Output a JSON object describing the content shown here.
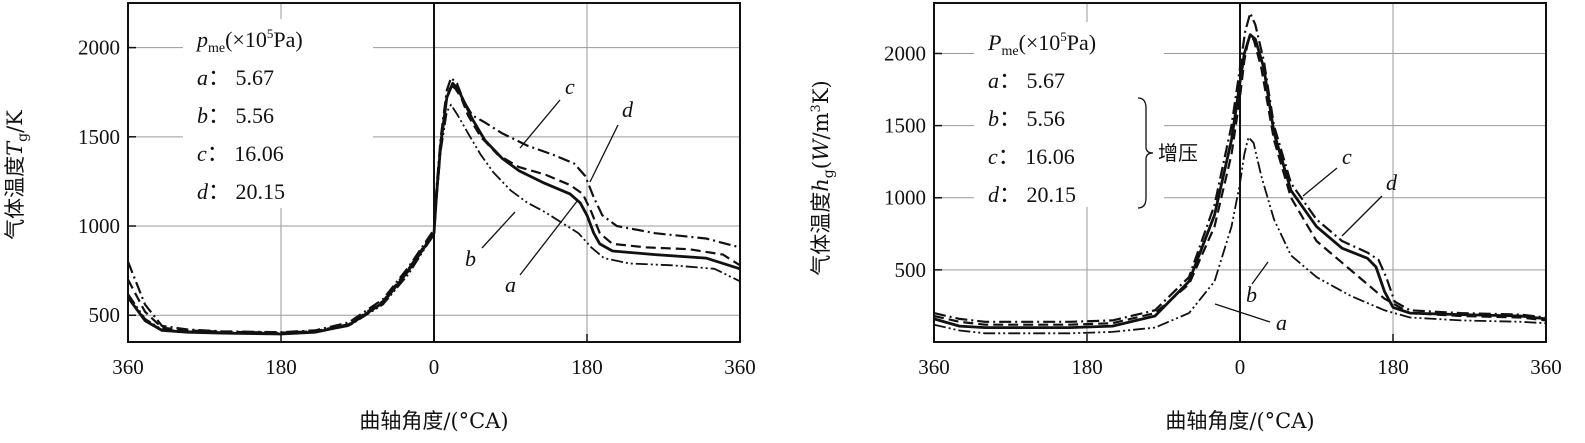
{
  "chart_data": [
    {
      "type": "line",
      "xlabel": "曲轴角度/(°CA)",
      "ylabel": "气体温度T_g/K",
      "x_tick_labels": [
        "360",
        "180",
        "0",
        "180",
        "360"
      ],
      "x_tick_values": [
        -360,
        -180,
        0,
        180,
        360
      ],
      "y_ticks": [
        500,
        1000,
        1500,
        2000
      ],
      "xlim": [
        -360,
        360
      ],
      "ylim": [
        350,
        2250
      ],
      "grid": true,
      "legend": {
        "title": "p_me(×10^5Pa)",
        "entries": [
          {
            "key": "a",
            "value": "5.67"
          },
          {
            "key": "b",
            "value": "5.56"
          },
          {
            "key": "c",
            "value": "16.06"
          },
          {
            "key": "d",
            "value": "20.15"
          }
        ]
      },
      "series": [
        {
          "name": "a",
          "style": "dashed",
          "points": [
            [
              -360,
              700
            ],
            [
              -340,
              520
            ],
            [
              -320,
              430
            ],
            [
              -290,
              415
            ],
            [
              -250,
              408
            ],
            [
              -180,
              402
            ],
            [
              -140,
              410
            ],
            [
              -100,
              450
            ],
            [
              -60,
              580
            ],
            [
              -30,
              760
            ],
            [
              -10,
              900
            ],
            [
              0,
              970
            ],
            [
              3,
              1200
            ],
            [
              8,
              1480
            ],
            [
              15,
              1720
            ],
            [
              20,
              1790
            ],
            [
              25,
              1770
            ],
            [
              32,
              1720
            ],
            [
              40,
              1620
            ],
            [
              55,
              1500
            ],
            [
              75,
              1400
            ],
            [
              100,
              1330
            ],
            [
              130,
              1290
            ],
            [
              160,
              1230
            ],
            [
              175,
              1180
            ],
            [
              185,
              1080
            ],
            [
              195,
              960
            ],
            [
              210,
              900
            ],
            [
              250,
              880
            ],
            [
              300,
              870
            ],
            [
              340,
              840
            ],
            [
              360,
              780
            ]
          ]
        },
        {
          "name": "b",
          "style": "dash-dot-dot",
          "points": [
            [
              -360,
              620
            ],
            [
              -340,
              480
            ],
            [
              -320,
              420
            ],
            [
              -290,
              410
            ],
            [
              -250,
              405
            ],
            [
              -180,
              400
            ],
            [
              -140,
              405
            ],
            [
              -100,
              440
            ],
            [
              -60,
              560
            ],
            [
              -30,
              730
            ],
            [
              -10,
              880
            ],
            [
              0,
              950
            ],
            [
              3,
              1150
            ],
            [
              8,
              1420
            ],
            [
              15,
              1640
            ],
            [
              20,
              1680
            ],
            [
              28,
              1620
            ],
            [
              40,
              1520
            ],
            [
              55,
              1400
            ],
            [
              70,
              1300
            ],
            [
              90,
              1200
            ],
            [
              110,
              1130
            ],
            [
              130,
              1080
            ],
            [
              150,
              1020
            ],
            [
              170,
              960
            ],
            [
              185,
              880
            ],
            [
              200,
              820
            ],
            [
              230,
              790
            ],
            [
              280,
              780
            ],
            [
              330,
              760
            ],
            [
              360,
              690
            ]
          ]
        },
        {
          "name": "c",
          "style": "solid",
          "points": [
            [
              -360,
              600
            ],
            [
              -340,
              470
            ],
            [
              -320,
              415
            ],
            [
              -290,
              405
            ],
            [
              -250,
              400
            ],
            [
              -180,
              395
            ],
            [
              -140,
              405
            ],
            [
              -100,
              445
            ],
            [
              -60,
              570
            ],
            [
              -30,
              750
            ],
            [
              -10,
              890
            ],
            [
              0,
              960
            ],
            [
              3,
              1180
            ],
            [
              8,
              1460
            ],
            [
              15,
              1720
            ],
            [
              22,
              1800
            ],
            [
              28,
              1770
            ],
            [
              35,
              1700
            ],
            [
              45,
              1600
            ],
            [
              60,
              1480
            ],
            [
              80,
              1380
            ],
            [
              100,
              1310
            ],
            [
              130,
              1240
            ],
            [
              160,
              1180
            ],
            [
              172,
              1130
            ],
            [
              180,
              1060
            ],
            [
              188,
              960
            ],
            [
              195,
              900
            ],
            [
              210,
              860
            ],
            [
              260,
              840
            ],
            [
              320,
              820
            ],
            [
              360,
              760
            ]
          ]
        },
        {
          "name": "d",
          "style": "dash-dot",
          "points": [
            [
              -360,
              800
            ],
            [
              -340,
              560
            ],
            [
              -320,
              440
            ],
            [
              -290,
              420
            ],
            [
              -250,
              410
            ],
            [
              -180,
              405
            ],
            [
              -140,
              415
            ],
            [
              -100,
              460
            ],
            [
              -60,
              590
            ],
            [
              -30,
              770
            ],
            [
              -10,
              910
            ],
            [
              0,
              980
            ],
            [
              3,
              1220
            ],
            [
              8,
              1500
            ],
            [
              15,
              1760
            ],
            [
              20,
              1830
            ],
            [
              27,
              1800
            ],
            [
              35,
              1700
            ],
            [
              45,
              1620
            ],
            [
              60,
              1580
            ],
            [
              80,
              1520
            ],
            [
              110,
              1450
            ],
            [
              140,
              1400
            ],
            [
              165,
              1350
            ],
            [
              178,
              1280
            ],
            [
              188,
              1160
            ],
            [
              198,
              1060
            ],
            [
              215,
              1000
            ],
            [
              260,
              960
            ],
            [
              320,
              930
            ],
            [
              360,
              880
            ]
          ]
        }
      ]
    },
    {
      "type": "line",
      "xlabel": "曲轴角度/(°CA)",
      "ylabel": "气体温度h_g(W/m^3K)",
      "x_tick_labels": [
        "360",
        "180",
        "0",
        "180",
        "360"
      ],
      "x_tick_values": [
        -360,
        -180,
        0,
        180,
        360
      ],
      "y_ticks": [
        500,
        1000,
        1500,
        2000
      ],
      "xlim": [
        -360,
        360
      ],
      "ylim": [
        0,
        2350
      ],
      "grid": true,
      "legend": {
        "title": "P_me(×10^5Pa)",
        "entries": [
          {
            "key": "a",
            "value": "5.67"
          },
          {
            "key": "b",
            "value": "5.56"
          },
          {
            "key": "c",
            "value": "16.06"
          },
          {
            "key": "d",
            "value": "20.15"
          }
        ],
        "bracket_note": "增压"
      },
      "series": [
        {
          "name": "a",
          "style": "dashed",
          "points": [
            [
              -360,
              180
            ],
            [
              -330,
              140
            ],
            [
              -300,
              120
            ],
            [
              -200,
              120
            ],
            [
              -150,
              130
            ],
            [
              -100,
              200
            ],
            [
              -60,
              400
            ],
            [
              -30,
              800
            ],
            [
              -10,
              1300
            ],
            [
              0,
              1700
            ],
            [
              5,
              1950
            ],
            [
              10,
              2100
            ],
            [
              16,
              2100
            ],
            [
              25,
              1900
            ],
            [
              40,
              1400
            ],
            [
              60,
              1000
            ],
            [
              90,
              700
            ],
            [
              130,
              500
            ],
            [
              170,
              300
            ],
            [
              200,
              200
            ],
            [
              260,
              180
            ],
            [
              330,
              170
            ],
            [
              360,
              150
            ]
          ]
        },
        {
          "name": "b",
          "style": "dash-dot-dot",
          "points": [
            [
              -360,
              120
            ],
            [
              -330,
              80
            ],
            [
              -300,
              60
            ],
            [
              -200,
              60
            ],
            [
              -150,
              70
            ],
            [
              -100,
              100
            ],
            [
              -60,
              200
            ],
            [
              -30,
              420
            ],
            [
              -10,
              800
            ],
            [
              0,
              1100
            ],
            [
              5,
              1300
            ],
            [
              10,
              1420
            ],
            [
              16,
              1380
            ],
            [
              25,
              1150
            ],
            [
              40,
              850
            ],
            [
              60,
              600
            ],
            [
              90,
              450
            ],
            [
              130,
              320
            ],
            [
              170,
              220
            ],
            [
              200,
              170
            ],
            [
              260,
              150
            ],
            [
              330,
              140
            ],
            [
              360,
              130
            ]
          ]
        },
        {
          "name": "c",
          "style": "solid",
          "points": [
            [
              -360,
              160
            ],
            [
              -330,
              110
            ],
            [
              -300,
              100
            ],
            [
              -200,
              100
            ],
            [
              -150,
              110
            ],
            [
              -100,
              180
            ],
            [
              -60,
              420
            ],
            [
              -30,
              880
            ],
            [
              -10,
              1400
            ],
            [
              0,
              1800
            ],
            [
              5,
              2000
            ],
            [
              12,
              2130
            ],
            [
              18,
              2100
            ],
            [
              28,
              1900
            ],
            [
              40,
              1450
            ],
            [
              60,
              1050
            ],
            [
              90,
              800
            ],
            [
              120,
              650
            ],
            [
              150,
              580
            ],
            [
              160,
              520
            ],
            [
              170,
              350
            ],
            [
              180,
              240
            ],
            [
              200,
              200
            ],
            [
              260,
              190
            ],
            [
              330,
              180
            ],
            [
              360,
              160
            ]
          ]
        },
        {
          "name": "d",
          "style": "dash-dot",
          "points": [
            [
              -360,
              200
            ],
            [
              -330,
              160
            ],
            [
              -300,
              140
            ],
            [
              -200,
              140
            ],
            [
              -150,
              150
            ],
            [
              -100,
              220
            ],
            [
              -60,
              450
            ],
            [
              -30,
              950
            ],
            [
              -10,
              1500
            ],
            [
              0,
              1900
            ],
            [
              6,
              2150
            ],
            [
              12,
              2280
            ],
            [
              18,
              2200
            ],
            [
              28,
              1950
            ],
            [
              40,
              1500
            ],
            [
              60,
              1100
            ],
            [
              90,
              850
            ],
            [
              120,
              700
            ],
            [
              150,
              620
            ],
            [
              163,
              570
            ],
            [
              172,
              450
            ],
            [
              182,
              280
            ],
            [
              200,
              220
            ],
            [
              260,
              200
            ],
            [
              330,
              190
            ],
            [
              360,
              170
            ]
          ]
        }
      ]
    }
  ]
}
